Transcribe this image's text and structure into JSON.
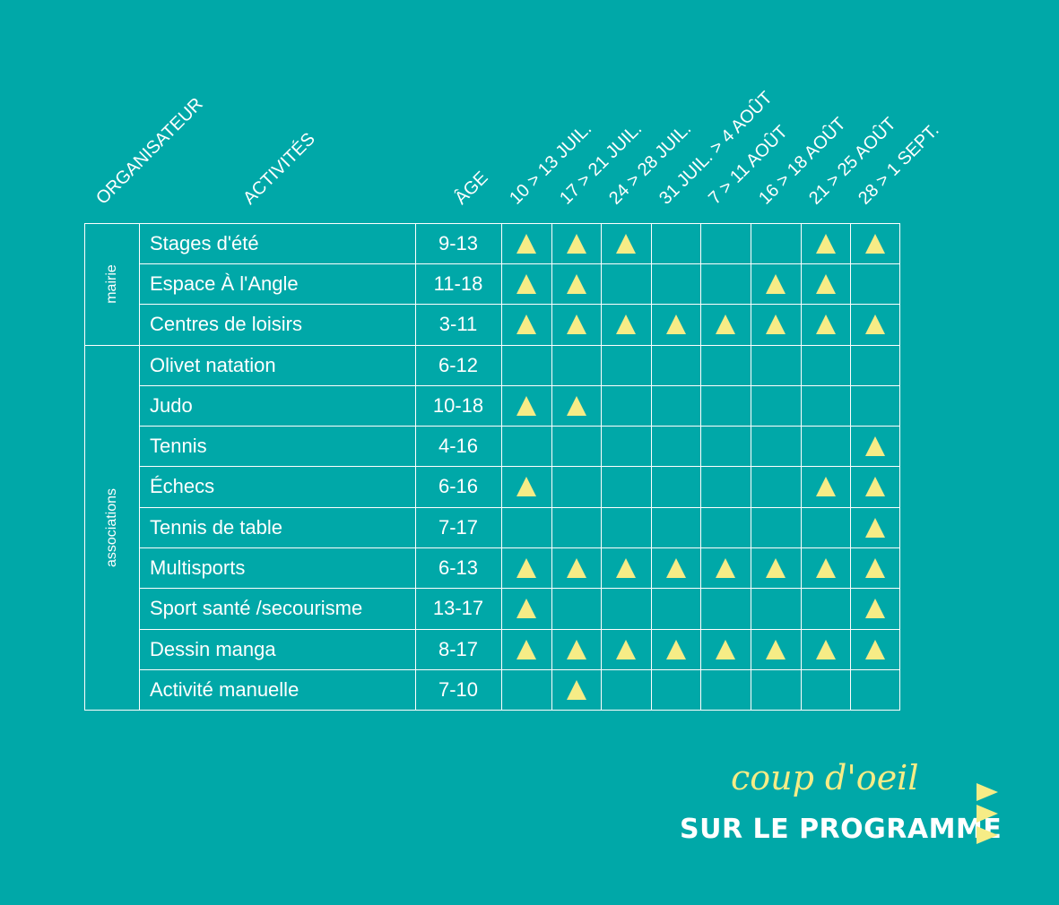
{
  "headers": {
    "organisateur": "ORGANISATEUR",
    "activites": "ACTIVITÉS",
    "age": "ÂGE",
    "weeks": [
      "10 > 13 JUIL.",
      "17 > 21 JUIL.",
      "24 > 28 JUIL.",
      "31 JUIL. > 4 AOÛT",
      "7 > 11 AOÛT",
      "16 > 18 AOÛT",
      "21 > 25 AOÛT",
      "28 > 1 SEPT."
    ]
  },
  "groups": [
    {
      "label": "mairie",
      "rows": 3
    },
    {
      "label": "associations",
      "rows": 9
    }
  ],
  "rows": [
    {
      "activity": "Stages d'été",
      "age": "9-13",
      "weeks": [
        1,
        1,
        1,
        0,
        0,
        0,
        1,
        1
      ]
    },
    {
      "activity": "Espace À l'Angle",
      "age": "11-18",
      "weeks": [
        1,
        1,
        0,
        0,
        0,
        1,
        1,
        0
      ]
    },
    {
      "activity": "Centres de loisirs",
      "age": "3-11",
      "weeks": [
        1,
        1,
        1,
        1,
        1,
        1,
        1,
        1
      ]
    },
    {
      "activity": "Olivet natation",
      "age": "6-12",
      "weeks": [
        0,
        0,
        0,
        0,
        0,
        0,
        0,
        0
      ]
    },
    {
      "activity": "Judo",
      "age": "10-18",
      "weeks": [
        1,
        1,
        0,
        0,
        0,
        0,
        0,
        0
      ]
    },
    {
      "activity": "Tennis",
      "age": "4-16",
      "weeks": [
        0,
        0,
        0,
        0,
        0,
        0,
        0,
        1
      ]
    },
    {
      "activity": "Échecs",
      "age": "6-16",
      "weeks": [
        1,
        0,
        0,
        0,
        0,
        0,
        1,
        1
      ]
    },
    {
      "activity": "Tennis de table",
      "age": "7-17",
      "weeks": [
        0,
        0,
        0,
        0,
        0,
        0,
        0,
        1
      ]
    },
    {
      "activity": "Multisports",
      "age": "6-13",
      "weeks": [
        1,
        1,
        1,
        1,
        1,
        1,
        1,
        1
      ]
    },
    {
      "activity": "Sport santé /secourisme",
      "age": "13-17",
      "weeks": [
        1,
        0,
        0,
        0,
        0,
        0,
        0,
        1
      ]
    },
    {
      "activity": "Dessin manga",
      "age": "8-17",
      "weeks": [
        1,
        1,
        1,
        1,
        1,
        1,
        1,
        1
      ]
    },
    {
      "activity": "Activité manuelle",
      "age": "7-10",
      "weeks": [
        0,
        1,
        0,
        0,
        0,
        0,
        0,
        0
      ]
    }
  ],
  "brand": {
    "script": "coup d'oeil",
    "bold": "SUR LE PROGRAMME"
  },
  "colors": {
    "background": "#00A8A8",
    "marker": "#F6EC86",
    "text": "#FFFFFF"
  },
  "icons": {
    "marker": "triangle-marker-icon",
    "brand": "triple-arrow-icon"
  }
}
